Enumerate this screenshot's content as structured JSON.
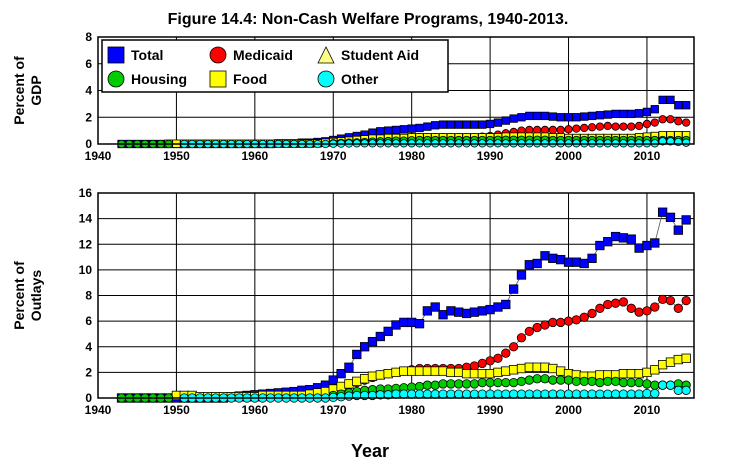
{
  "figure": {
    "title": "Figure 14.4: Non-Cash Welfare Programs, 1940-2013.",
    "xlabel": "Year"
  },
  "chart_data": [
    {
      "type": "scatter",
      "ylabel": [
        "Percent of",
        "GDP"
      ],
      "xlim": [
        1940,
        2016
      ],
      "ylim": [
        0,
        8
      ],
      "xticks": [
        1940,
        1950,
        1960,
        1970,
        1980,
        1990,
        2000,
        2010
      ],
      "yticks": [
        0,
        2,
        4,
        6,
        8
      ],
      "grid": true,
      "legend": {
        "placement": "top-left",
        "entries": [
          {
            "label": "Total",
            "color": "#0000ff",
            "marker": "square"
          },
          {
            "label": "Medicaid",
            "color": "#ff0000",
            "marker": "circle"
          },
          {
            "label": "Student Aid",
            "color": "#ffff88",
            "marker": "triangle"
          },
          {
            "label": "Housing",
            "color": "#00cc00",
            "marker": "circle"
          },
          {
            "label": "Food",
            "color": "#ffff00",
            "marker": "square"
          },
          {
            "label": "Other",
            "color": "#00ffff",
            "marker": "circle"
          }
        ]
      },
      "x": [
        1943,
        1944,
        1945,
        1946,
        1947,
        1948,
        1949,
        1950,
        1951,
        1952,
        1953,
        1954,
        1955,
        1956,
        1957,
        1958,
        1959,
        1960,
        1961,
        1962,
        1963,
        1964,
        1965,
        1966,
        1967,
        1968,
        1969,
        1970,
        1971,
        1972,
        1973,
        1974,
        1975,
        1976,
        1977,
        1978,
        1979,
        1980,
        1981,
        1982,
        1983,
        1984,
        1985,
        1986,
        1987,
        1988,
        1989,
        1990,
        1991,
        1992,
        1993,
        1994,
        1995,
        1996,
        1997,
        1998,
        1999,
        2000,
        2001,
        2002,
        2003,
        2004,
        2005,
        2006,
        2007,
        2008,
        2009,
        2010,
        2011,
        2012,
        2013,
        2014,
        2015
      ],
      "series": [
        {
          "name": "Total",
          "color": "#0000ff",
          "marker": "square",
          "values": [
            0,
            0,
            0,
            0,
            0,
            0,
            0,
            0,
            0,
            0,
            0,
            0,
            0,
            0,
            0,
            0,
            0,
            0,
            0,
            0,
            0.05,
            0.05,
            0.05,
            0.1,
            0.1,
            0.15,
            0.2,
            0.3,
            0.4,
            0.5,
            0.6,
            0.7,
            0.85,
            0.95,
            1.0,
            1.05,
            1.1,
            1.15,
            1.2,
            1.3,
            1.4,
            1.45,
            1.45,
            1.45,
            1.45,
            1.45,
            1.45,
            1.5,
            1.6,
            1.75,
            1.9,
            2.0,
            2.1,
            2.1,
            2.1,
            2.05,
            2.0,
            2.0,
            2.0,
            2.05,
            2.1,
            2.15,
            2.2,
            2.25,
            2.25,
            2.25,
            2.3,
            2.4,
            2.6,
            3.3,
            3.3,
            2.9,
            2.9
          ]
        },
        {
          "name": "Medicaid",
          "color": "#ff0000",
          "marker": "circle",
          "values": [
            null,
            null,
            null,
            null,
            null,
            null,
            null,
            null,
            null,
            null,
            null,
            null,
            null,
            null,
            null,
            null,
            null,
            null,
            null,
            null,
            null,
            null,
            null,
            0.02,
            0.05,
            0.08,
            0.1,
            0.15,
            0.2,
            0.25,
            0.3,
            0.35,
            0.4,
            0.42,
            0.45,
            0.45,
            0.45,
            0.5,
            0.5,
            0.5,
            0.5,
            0.5,
            0.5,
            0.5,
            0.5,
            0.5,
            0.55,
            0.6,
            0.7,
            0.8,
            0.9,
            1.0,
            1.05,
            1.05,
            1.05,
            1.05,
            1.05,
            1.1,
            1.15,
            1.2,
            1.25,
            1.3,
            1.35,
            1.3,
            1.3,
            1.3,
            1.35,
            1.5,
            1.6,
            1.85,
            1.85,
            1.7,
            1.6
          ]
        },
        {
          "name": "Food",
          "color": "#ffff00",
          "marker": "square",
          "values": [
            null,
            null,
            null,
            null,
            null,
            null,
            0.02,
            0.02,
            0.02,
            0.02,
            0.02,
            0.02,
            0.02,
            0.02,
            0.02,
            0.02,
            0.02,
            0.02,
            0.02,
            0.02,
            0.02,
            0.02,
            0.02,
            0.02,
            0.03,
            0.05,
            0.1,
            0.15,
            0.2,
            0.25,
            0.3,
            0.35,
            0.4,
            0.4,
            0.45,
            0.45,
            0.45,
            0.5,
            0.5,
            0.5,
            0.5,
            0.5,
            0.5,
            0.5,
            0.5,
            0.5,
            0.5,
            0.5,
            0.5,
            0.55,
            0.55,
            0.55,
            0.55,
            0.55,
            0.55,
            0.5,
            0.5,
            0.45,
            0.45,
            0.45,
            0.45,
            0.45,
            0.45,
            0.45,
            0.45,
            0.45,
            0.5,
            0.55,
            0.6,
            0.65,
            0.65,
            0.65,
            0.65
          ]
        },
        {
          "name": "Housing",
          "color": "#00cc00",
          "marker": "circle",
          "values": [
            0,
            0,
            0,
            0,
            0,
            0,
            0,
            null,
            null,
            null,
            null,
            null,
            null,
            null,
            null,
            null,
            null,
            null,
            null,
            null,
            null,
            null,
            null,
            null,
            null,
            null,
            null,
            0.05,
            0.08,
            0.1,
            0.12,
            0.15,
            0.18,
            0.2,
            0.22,
            0.25,
            0.25,
            0.28,
            0.3,
            0.3,
            0.3,
            0.3,
            0.3,
            0.3,
            0.3,
            0.3,
            0.3,
            0.3,
            0.32,
            0.32,
            0.32,
            0.32,
            0.32,
            0.32,
            0.32,
            0.3,
            0.3,
            0.3,
            0.3,
            0.3,
            0.3,
            0.3,
            0.3,
            0.3,
            0.3,
            0.3,
            0.3,
            0.3,
            0.3,
            0.3,
            0.3,
            0.3,
            0.3
          ]
        },
        {
          "name": "Other",
          "color": "#00ffff",
          "marker": "circle",
          "values": [
            null,
            null,
            null,
            null,
            null,
            null,
            null,
            null,
            0,
            0,
            0,
            0,
            0,
            0,
            0,
            0,
            0,
            0,
            0,
            0,
            0,
            0,
            0,
            0,
            0,
            0,
            0,
            0.02,
            0.03,
            0.04,
            0.05,
            0.05,
            0.05,
            0.05,
            0.05,
            0.05,
            0.05,
            0.05,
            0.05,
            0.05,
            0.05,
            0.05,
            0.05,
            0.05,
            0.05,
            0.05,
            0.05,
            0.05,
            0.05,
            0.05,
            0.05,
            0.05,
            0.05,
            0.05,
            0.05,
            0.05,
            0.05,
            0.05,
            0.05,
            0.05,
            0.05,
            0.05,
            0.05,
            0.05,
            0.05,
            0.05,
            0.05,
            0.05,
            0.05,
            0.2,
            0.2,
            0.15,
            0.1
          ]
        }
      ]
    },
    {
      "type": "scatter",
      "ylabel": [
        "Percent of",
        "Outlays"
      ],
      "xlim": [
        1940,
        2016
      ],
      "ylim": [
        0,
        16
      ],
      "xticks": [
        1940,
        1950,
        1960,
        1970,
        1980,
        1990,
        2000,
        2010
      ],
      "yticks": [
        0,
        2,
        4,
        6,
        8,
        10,
        12,
        14,
        16
      ],
      "grid": true,
      "x": [
        1943,
        1944,
        1945,
        1946,
        1947,
        1948,
        1949,
        1950,
        1951,
        1952,
        1953,
        1954,
        1955,
        1956,
        1957,
        1958,
        1959,
        1960,
        1961,
        1962,
        1963,
        1964,
        1965,
        1966,
        1967,
        1968,
        1969,
        1970,
        1971,
        1972,
        1973,
        1974,
        1975,
        1976,
        1977,
        1978,
        1979,
        1980,
        1981,
        1982,
        1983,
        1984,
        1985,
        1986,
        1987,
        1988,
        1989,
        1990,
        1991,
        1992,
        1993,
        1994,
        1995,
        1996,
        1997,
        1998,
        1999,
        2000,
        2001,
        2002,
        2003,
        2004,
        2005,
        2006,
        2007,
        2008,
        2009,
        2010,
        2011,
        2012,
        2013,
        2014,
        2015
      ],
      "series": [
        {
          "name": "Total",
          "color": "#0000ff",
          "marker": "square",
          "values": [
            0,
            0,
            0,
            0,
            0,
            0,
            0,
            0,
            0,
            0,
            0,
            0,
            0,
            0,
            0.1,
            0.15,
            0.2,
            0.25,
            0.3,
            0.35,
            0.4,
            0.45,
            0.5,
            0.6,
            0.65,
            0.8,
            1.0,
            1.4,
            1.9,
            2.4,
            3.4,
            4.0,
            4.4,
            4.8,
            5.2,
            5.7,
            5.9,
            5.9,
            5.8,
            6.8,
            7.1,
            6.5,
            6.8,
            6.7,
            6.6,
            6.7,
            6.8,
            6.9,
            7.1,
            7.3,
            8.5,
            9.6,
            10.4,
            10.5,
            11.1,
            10.9,
            10.8,
            10.6,
            10.6,
            10.5,
            10.9,
            11.9,
            12.2,
            12.6,
            12.5,
            12.4,
            11.7,
            11.9,
            12.1,
            14.5,
            14.1,
            13.1,
            13.9
          ]
        },
        {
          "name": "Medicaid",
          "color": "#ff0000",
          "marker": "circle",
          "values": [
            null,
            null,
            null,
            null,
            null,
            null,
            null,
            null,
            null,
            null,
            null,
            null,
            null,
            null,
            null,
            null,
            null,
            null,
            null,
            null,
            null,
            null,
            null,
            0.05,
            0.2,
            0.3,
            0.4,
            0.6,
            0.8,
            1.0,
            1.2,
            1.4,
            1.6,
            1.8,
            1.9,
            2.0,
            2.1,
            2.2,
            2.3,
            2.3,
            2.3,
            2.3,
            2.3,
            2.3,
            2.4,
            2.5,
            2.7,
            2.9,
            3.1,
            3.5,
            4.0,
            4.7,
            5.2,
            5.5,
            5.7,
            5.9,
            5.9,
            6.0,
            6.1,
            6.3,
            6.6,
            7.0,
            7.3,
            7.4,
            7.5,
            7.0,
            6.7,
            6.8,
            7.1,
            7.7,
            7.6,
            7.0,
            7.6
          ]
        },
        {
          "name": "Food",
          "color": "#ffff00",
          "marker": "square",
          "values": [
            null,
            null,
            null,
            null,
            null,
            null,
            null,
            0.2,
            0.2,
            0.2,
            0.1,
            0.1,
            0.1,
            0.1,
            0.1,
            0.1,
            0.1,
            0.1,
            0.2,
            0.2,
            0.2,
            0.2,
            0.2,
            0.2,
            0.3,
            0.4,
            0.5,
            0.7,
            0.9,
            1.1,
            1.3,
            1.5,
            1.7,
            1.8,
            1.9,
            2.0,
            2.1,
            2.1,
            2.1,
            2.1,
            2.1,
            2.1,
            2.0,
            2.0,
            1.9,
            1.9,
            1.9,
            1.9,
            2.0,
            2.1,
            2.2,
            2.3,
            2.4,
            2.4,
            2.4,
            2.3,
            2.1,
            1.9,
            1.8,
            1.7,
            1.7,
            1.8,
            1.8,
            1.8,
            1.9,
            1.9,
            1.9,
            2.0,
            2.2,
            2.6,
            2.8,
            3.0,
            3.1
          ]
        },
        {
          "name": "Housing",
          "color": "#00cc00",
          "marker": "circle",
          "values": [
            0,
            0,
            0,
            0,
            0,
            0,
            0,
            null,
            null,
            null,
            null,
            null,
            null,
            null,
            null,
            null,
            null,
            null,
            null,
            null,
            null,
            null,
            null,
            null,
            null,
            null,
            null,
            0.2,
            0.3,
            0.4,
            0.5,
            0.6,
            0.65,
            0.7,
            0.7,
            0.75,
            0.8,
            0.85,
            0.9,
            1.0,
            1.0,
            1.1,
            1.1,
            1.1,
            1.1,
            1.1,
            1.2,
            1.2,
            1.2,
            1.2,
            1.2,
            1.3,
            1.4,
            1.5,
            1.5,
            1.4,
            1.4,
            1.4,
            1.3,
            1.3,
            1.3,
            1.2,
            1.3,
            1.3,
            1.2,
            1.2,
            1.2,
            1.1,
            1.0,
            1.0,
            1.0,
            1.1,
            1.0
          ]
        },
        {
          "name": "Other",
          "color": "#00ffff",
          "marker": "circle",
          "values": [
            null,
            null,
            null,
            null,
            null,
            null,
            null,
            null,
            0,
            0,
            0,
            0,
            0,
            0,
            0,
            0,
            0,
            0,
            0,
            0,
            0,
            0,
            0,
            0,
            0,
            0,
            0,
            0.05,
            0.1,
            0.15,
            0.2,
            0.2,
            0.2,
            0.25,
            0.25,
            0.3,
            0.3,
            0.3,
            0.3,
            0.3,
            0.3,
            0.3,
            0.3,
            0.3,
            0.3,
            0.3,
            0.3,
            0.3,
            0.3,
            0.3,
            0.3,
            0.3,
            0.3,
            0.3,
            0.3,
            0.3,
            0.3,
            0.3,
            0.3,
            0.3,
            0.3,
            0.3,
            0.3,
            0.3,
            0.3,
            0.3,
            0.3,
            0.35,
            0.35,
            1.0,
            1.0,
            0.6,
            0.6
          ]
        }
      ]
    }
  ]
}
